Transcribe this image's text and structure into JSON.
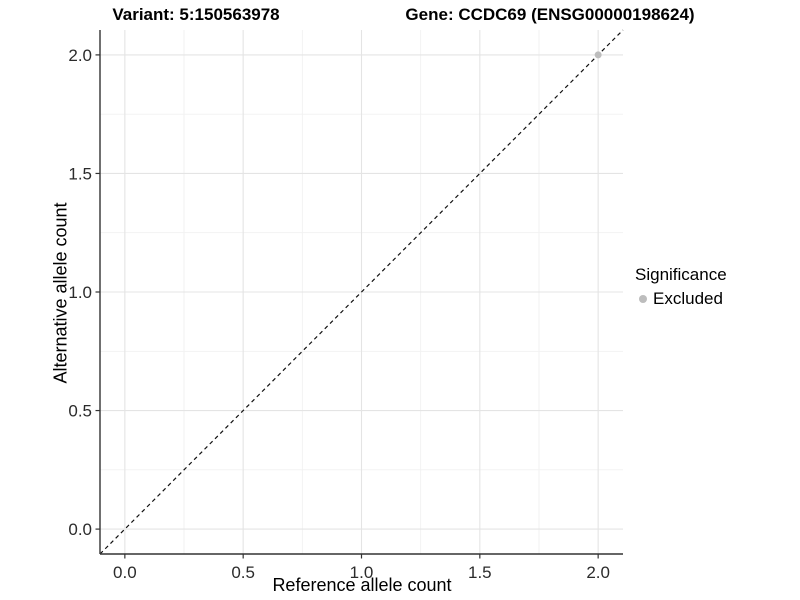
{
  "titles": {
    "variant": "Variant: 5:150563978",
    "gene": "Gene: CCDC69 (ENSG00000198624)"
  },
  "chart_data": {
    "type": "scatter",
    "title_left": "Variant: 5:150563978",
    "title_right": "Gene: CCDC69 (ENSG00000198624)",
    "xlabel": "Reference allele count",
    "ylabel": "Alternative allele count",
    "xlim": [
      -0.105,
      2.105
    ],
    "ylim": [
      -0.105,
      2.105
    ],
    "xticks": [
      0.0,
      0.5,
      1.0,
      1.5,
      2.0
    ],
    "yticks": [
      0.0,
      0.5,
      1.0,
      1.5,
      2.0
    ],
    "xtick_labels": [
      "0.0",
      "0.5",
      "1.0",
      "1.5",
      "2.0"
    ],
    "ytick_labels": [
      "0.0",
      "0.5",
      "1.0",
      "1.5",
      "2.0"
    ],
    "xminor": [
      0.25,
      0.75,
      1.25,
      1.75
    ],
    "yminor": [
      0.25,
      0.75,
      1.25,
      1.75
    ],
    "grid": "major+minor",
    "identity_line": {
      "style": "dashed",
      "x1": -0.105,
      "y1": -0.105,
      "x2": 2.105,
      "y2": 2.105
    },
    "series": [
      {
        "name": "Excluded",
        "color": "#bdbdbd",
        "points": [
          [
            2.0,
            2.0
          ]
        ]
      }
    ],
    "legend": {
      "title": "Significance",
      "position": "right",
      "entries": [
        {
          "label": "Excluded",
          "color": "#bdbdbd"
        }
      ]
    }
  },
  "colors": {
    "background": "#ffffff",
    "grid_major": "#e4e4e4",
    "grid_minor": "#f1f1f1",
    "axis_line": "#333333",
    "tick_mark": "#333333",
    "dashed_line": "#111111",
    "point": "#bdbdbd"
  }
}
